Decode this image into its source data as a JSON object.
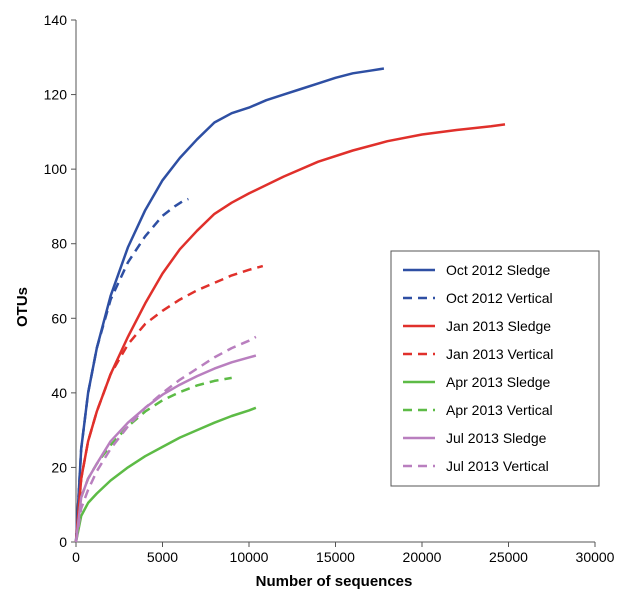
{
  "chart_data": {
    "type": "line",
    "title": "",
    "xlabel": "Number of sequences",
    "ylabel": "OTUs",
    "xlim": [
      0,
      30000
    ],
    "ylim": [
      0,
      140
    ],
    "xticks": [
      0,
      5000,
      10000,
      15000,
      20000,
      25000,
      30000
    ],
    "yticks": [
      0,
      20,
      40,
      60,
      80,
      100,
      120,
      140
    ],
    "grid": false,
    "legend_position": "right",
    "series": [
      {
        "name": "Oct 2012 Sledge",
        "color": "#2e4fa3",
        "dash": false,
        "x": [
          0,
          300,
          700,
          1200,
          2000,
          3000,
          4000,
          5000,
          6000,
          7000,
          8000,
          9000,
          10000,
          11000,
          12000,
          13000,
          14000,
          15000,
          16000,
          17000,
          17800
        ],
        "y": [
          0,
          25,
          40,
          52,
          66,
          79,
          89,
          97,
          103,
          108,
          112.5,
          115,
          116.5,
          118.5,
          120,
          121.5,
          123,
          124.5,
          125.7,
          126.4,
          127
        ]
      },
      {
        "name": "Oct 2012 Vertical",
        "color": "#2e4fa3",
        "dash": true,
        "x": [
          0,
          300,
          700,
          1200,
          2000,
          3000,
          4000,
          5000,
          5700,
          6200,
          6500
        ],
        "y": [
          0,
          25,
          40,
          52,
          65,
          75,
          82,
          87.5,
          90,
          91.5,
          92
        ]
      },
      {
        "name": "Jan 2013 Sledge",
        "color": "#e0302b",
        "dash": false,
        "x": [
          0,
          300,
          700,
          1200,
          2000,
          3000,
          4000,
          5000,
          6000,
          7000,
          8000,
          9000,
          10000,
          12000,
          14000,
          16000,
          18000,
          20000,
          22000,
          24000,
          24800
        ],
        "y": [
          0,
          17,
          27,
          35,
          45,
          55,
          64,
          72,
          78.5,
          83.5,
          88,
          91,
          93.5,
          98,
          102,
          105,
          107.5,
          109.3,
          110.5,
          111.5,
          112
        ]
      },
      {
        "name": "Jan 2013 Vertical",
        "color": "#e0302b",
        "dash": true,
        "x": [
          0,
          300,
          700,
          1200,
          2000,
          3000,
          4000,
          5000,
          6000,
          7000,
          8000,
          9000,
          10000,
          10800
        ],
        "y": [
          0,
          17,
          27,
          35,
          45,
          53,
          58.5,
          62,
          65,
          67.5,
          69.5,
          71.5,
          73,
          74
        ]
      },
      {
        "name": "Apr 2013 Sledge",
        "color": "#5dbb46",
        "dash": false,
        "x": [
          0,
          300,
          700,
          1200,
          2000,
          3000,
          4000,
          5000,
          6000,
          7000,
          8000,
          9000,
          10000,
          10400
        ],
        "y": [
          0,
          7,
          10.5,
          13,
          16.5,
          20,
          23,
          25.5,
          28,
          30,
          32,
          33.8,
          35.3,
          36
        ]
      },
      {
        "name": "Apr 2013 Vertical",
        "color": "#5dbb46",
        "dash": true,
        "x": [
          0,
          300,
          700,
          1200,
          2000,
          3000,
          4000,
          5000,
          6000,
          7000,
          8000,
          9000
        ],
        "y": [
          0,
          12,
          17,
          21,
          26,
          31,
          35,
          38,
          40.2,
          42,
          43.2,
          44
        ]
      },
      {
        "name": "Jul 2013 Sledge",
        "color": "#b97fbf",
        "dash": false,
        "x": [
          0,
          300,
          700,
          1200,
          2000,
          3000,
          4000,
          5000,
          6000,
          7000,
          8000,
          9000,
          10000,
          10400
        ],
        "y": [
          0,
          12,
          17,
          21,
          27,
          32,
          36,
          39.5,
          42.2,
          44.5,
          46.5,
          48.2,
          49.5,
          50
        ]
      },
      {
        "name": "Jul 2013 Vertical",
        "color": "#b97fbf",
        "dash": true,
        "x": [
          0,
          300,
          700,
          1200,
          2000,
          3000,
          4000,
          5000,
          6000,
          7000,
          8000,
          9000,
          10000,
          10400
        ],
        "y": [
          0,
          9,
          14,
          19,
          25,
          31,
          36,
          40,
          43.5,
          46.5,
          49.5,
          52,
          54,
          55
        ]
      }
    ]
  }
}
